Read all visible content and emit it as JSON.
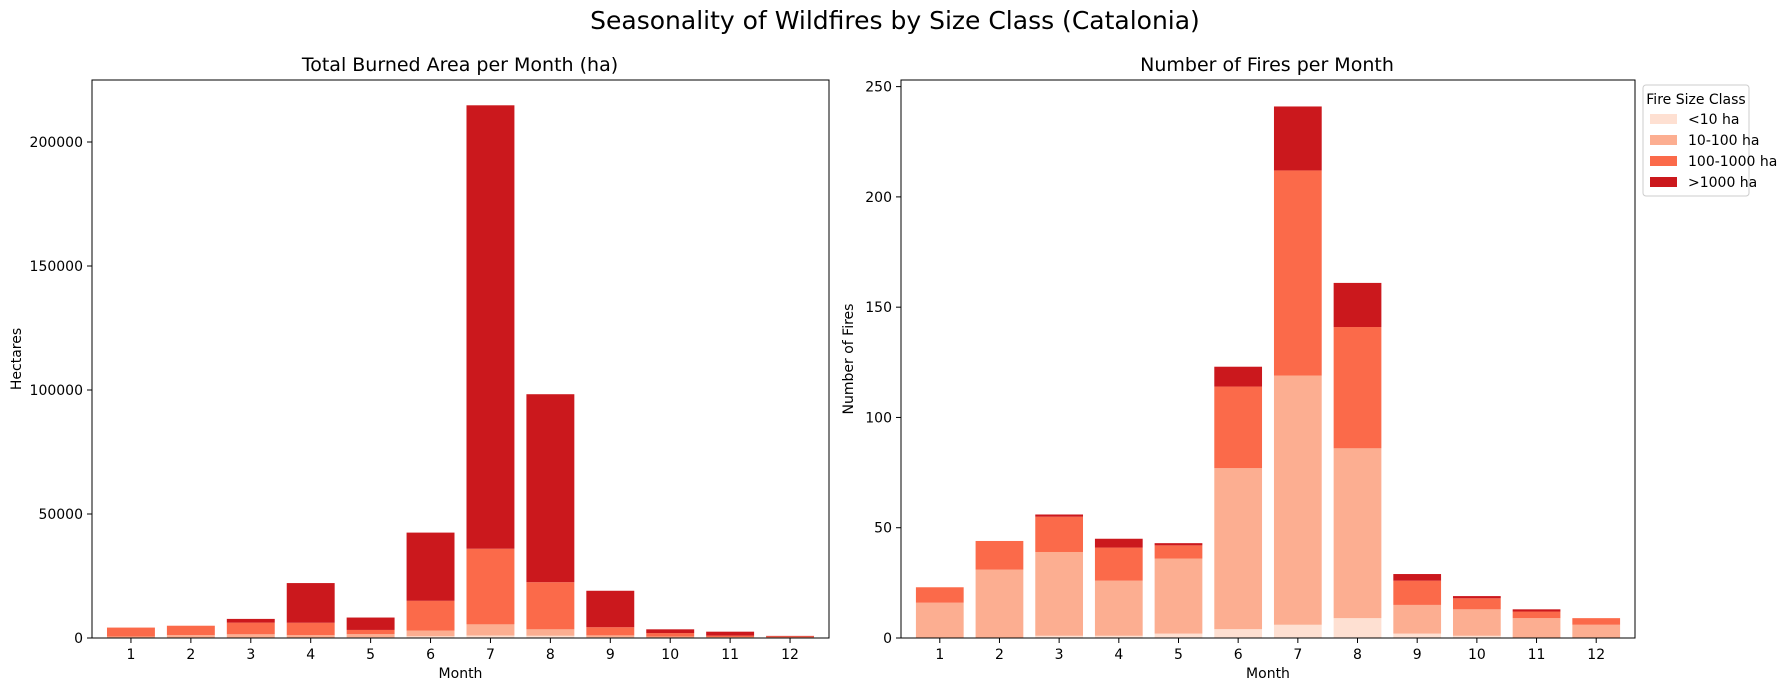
{
  "figure_title": "Seasonality of Wildfires by Size Class (Catalonia)",
  "colors": {
    "lt10": "#fee0d2",
    "10_100": "#fcae91",
    "100_1000": "#fb6a4a",
    "gt1000": "#cb181d"
  },
  "legend": {
    "title": "Fire Size Class",
    "labels": [
      "<10 ha",
      "10-100 ha",
      "100-1000 ha",
      ">1000 ha"
    ]
  },
  "chart_data": [
    {
      "type": "bar",
      "stacked": true,
      "title": "Total Burned Area per Month (ha)",
      "xlabel": "Month",
      "ylabel": "Hectares",
      "categories": [
        "1",
        "2",
        "3",
        "4",
        "5",
        "6",
        "7",
        "8",
        "9",
        "10",
        "11",
        "12"
      ],
      "ylim": [
        0,
        225000
      ],
      "yticks": [
        0,
        50000,
        100000,
        150000,
        200000
      ],
      "ytick_labels": [
        "0",
        "50000",
        "100000",
        "150000",
        "200000"
      ],
      "series": [
        {
          "name": "<10 ha",
          "values": [
            100,
            150,
            200,
            150,
            250,
            700,
            1000,
            900,
            250,
            100,
            50,
            50
          ]
        },
        {
          "name": "10-100 ha",
          "values": [
            500,
            1000,
            1300,
            1000,
            1300,
            2300,
            4500,
            2600,
            800,
            500,
            300,
            200
          ]
        },
        {
          "name": "100-1000 ha",
          "values": [
            3600,
            3800,
            4700,
            5000,
            1700,
            12000,
            30500,
            19000,
            3300,
            1400,
            600,
            400
          ]
        },
        {
          "name": ">1000 ha",
          "values": [
            0,
            0,
            1500,
            16000,
            5000,
            27500,
            178800,
            75800,
            14700,
            1500,
            1600,
            200
          ]
        }
      ]
    },
    {
      "type": "bar",
      "stacked": true,
      "title": "Number of Fires per Month",
      "xlabel": "Month",
      "ylabel": "Number of Fires",
      "categories": [
        "1",
        "2",
        "3",
        "4",
        "5",
        "6",
        "7",
        "8",
        "9",
        "10",
        "11",
        "12"
      ],
      "ylim": [
        0,
        253
      ],
      "yticks": [
        0,
        50,
        100,
        150,
        200,
        250
      ],
      "ytick_labels": [
        "0",
        "50",
        "100",
        "150",
        "200",
        "250"
      ],
      "series": [
        {
          "name": "<10 ha",
          "values": [
            0,
            0,
            1,
            1,
            2,
            4,
            6,
            9,
            2,
            1,
            0,
            0
          ]
        },
        {
          "name": "10-100 ha",
          "values": [
            16,
            31,
            38,
            25,
            34,
            73,
            113,
            77,
            13,
            12,
            9,
            6
          ]
        },
        {
          "name": "100-1000 ha",
          "values": [
            7,
            13,
            16,
            15,
            6,
            37,
            93,
            55,
            11,
            5,
            3,
            3
          ]
        },
        {
          "name": ">1000 ha",
          "values": [
            0,
            0,
            1,
            4,
            1,
            9,
            29,
            20,
            3,
            1,
            1,
            0
          ]
        }
      ]
    }
  ]
}
